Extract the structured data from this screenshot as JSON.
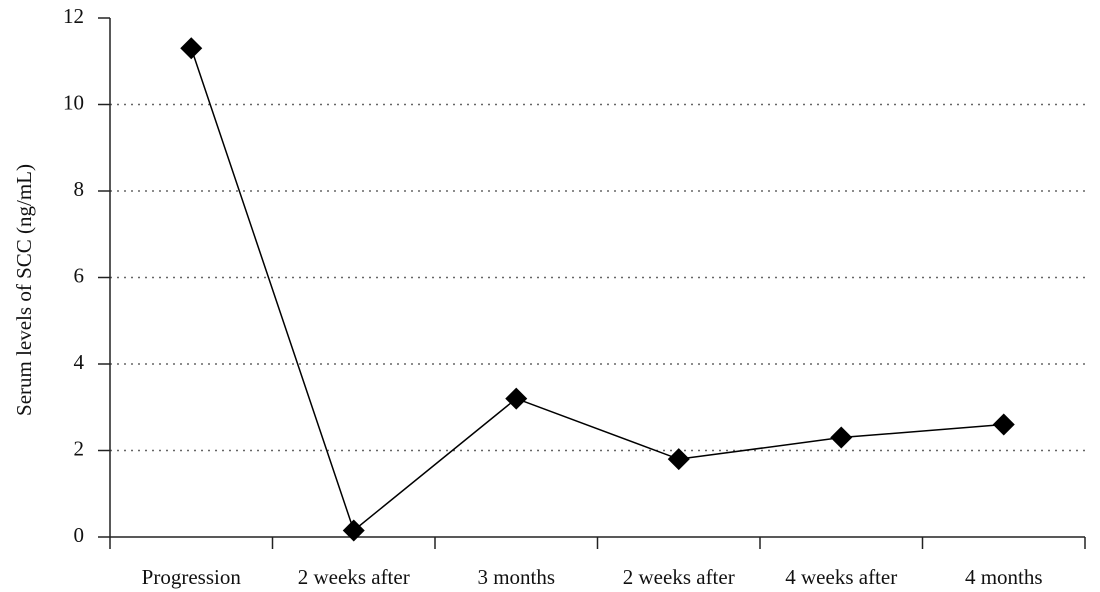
{
  "chart_data": {
    "type": "line",
    "y_label": "Serum levels of SCC (ng/mL)",
    "categories": [
      "Progression",
      "2 weeks after",
      "3 months",
      "2 weeks after",
      "4 weeks after",
      "4 months"
    ],
    "values": [
      11.3,
      0.15,
      3.2,
      1.8,
      2.3,
      2.6
    ],
    "color": "#000000",
    "ylim": [
      0,
      12
    ],
    "yticks": [
      0,
      2,
      4,
      6,
      8,
      10,
      12
    ],
    "grid": true
  }
}
